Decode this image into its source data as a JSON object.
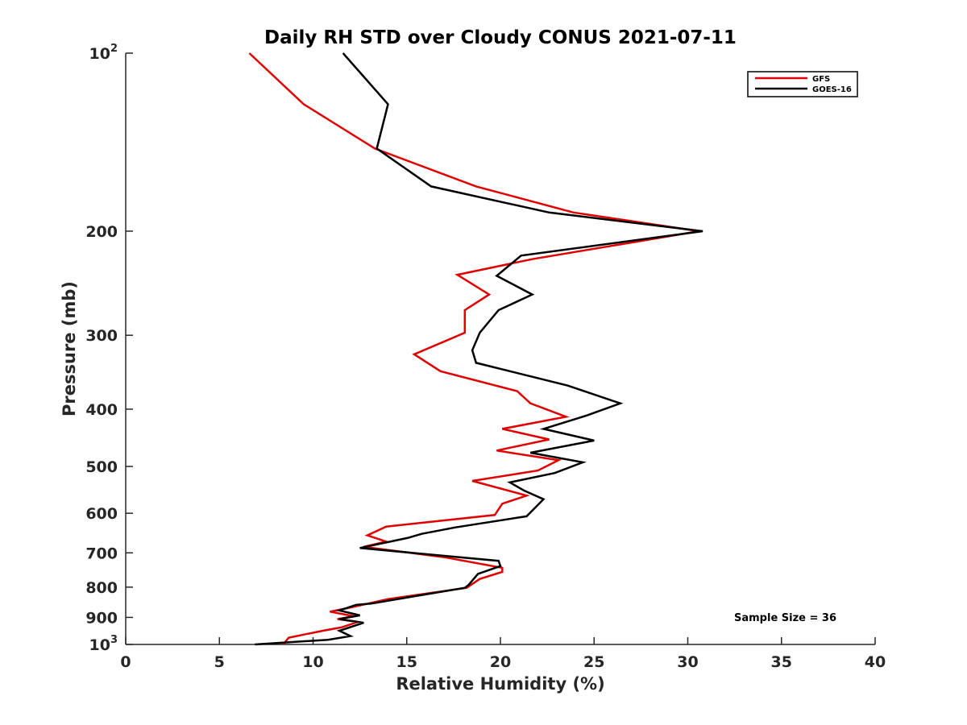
{
  "chart_data": {
    "type": "line",
    "title": "Daily RH STD over Cloudy CONUS 2021-07-11",
    "xlabel": "Relative Humidity (%)",
    "ylabel": "Pressure (mb)",
    "xlim": [
      0,
      40
    ],
    "ylim": [
      100,
      1000
    ],
    "y_scale": "log",
    "y_reversed": true,
    "grid": false,
    "legend_position": "top-right",
    "x_ticks": [
      {
        "value": 0,
        "label": "0"
      },
      {
        "value": 5,
        "label": "5"
      },
      {
        "value": 10,
        "label": "10"
      },
      {
        "value": 15,
        "label": "15"
      },
      {
        "value": 20,
        "label": "20"
      },
      {
        "value": 25,
        "label": "25"
      },
      {
        "value": 30,
        "label": "30"
      },
      {
        "value": 35,
        "label": "35"
      },
      {
        "value": 40,
        "label": "40"
      }
    ],
    "y_ticks": [
      {
        "value": 100,
        "base": "10",
        "exp": "2"
      },
      {
        "value": 200,
        "label": "200"
      },
      {
        "value": 300,
        "label": "300"
      },
      {
        "value": 400,
        "label": "400"
      },
      {
        "value": 500,
        "label": "500"
      },
      {
        "value": 600,
        "label": "600"
      },
      {
        "value": 700,
        "label": "700"
      },
      {
        "value": 800,
        "label": "800"
      },
      {
        "value": 900,
        "label": "900"
      },
      {
        "value": 1000,
        "base": "10",
        "exp": "3"
      }
    ],
    "annotations": [
      "Sample Size = 36"
    ],
    "series": [
      {
        "name": "GFS",
        "color": "#e00000",
        "points": [
          [
            6.6,
            100
          ],
          [
            9.5,
            122
          ],
          [
            13.3,
            145
          ],
          [
            18.7,
            168
          ],
          [
            23.9,
            186
          ],
          [
            30.6,
            200
          ],
          [
            21.7,
            223
          ],
          [
            17.7,
            237
          ],
          [
            19.4,
            256
          ],
          [
            18.1,
            272
          ],
          [
            18.1,
            297
          ],
          [
            15.4,
            323
          ],
          [
            16.8,
            345
          ],
          [
            20.9,
            373
          ],
          [
            21.6,
            391
          ],
          [
            23.5,
            412
          ],
          [
            20.1,
            432
          ],
          [
            22.6,
            450
          ],
          [
            19.8,
            470
          ],
          [
            23.1,
            488
          ],
          [
            22.0,
            508
          ],
          [
            18.5,
            529
          ],
          [
            21.4,
            560
          ],
          [
            20.1,
            578
          ],
          [
            19.7,
            604
          ],
          [
            13.9,
            632
          ],
          [
            12.9,
            654
          ],
          [
            13.9,
            670
          ],
          [
            12.7,
            684
          ],
          [
            17.0,
            712
          ],
          [
            20.1,
            742
          ],
          [
            20.1,
            754
          ],
          [
            18.9,
            775
          ],
          [
            18.2,
            802
          ],
          [
            14.0,
            838
          ],
          [
            12.0,
            866
          ],
          [
            10.9,
            880
          ],
          [
            12.2,
            896
          ],
          [
            11.3,
            906
          ],
          [
            12.4,
            916
          ],
          [
            11.5,
            936
          ],
          [
            10.6,
            947
          ],
          [
            8.7,
            974
          ],
          [
            8.4,
            1000
          ]
        ]
      },
      {
        "name": "GOES-16",
        "color": "#000000",
        "points": [
          [
            11.6,
            100
          ],
          [
            14.0,
            122
          ],
          [
            13.4,
            145
          ],
          [
            16.3,
            168
          ],
          [
            22.6,
            186
          ],
          [
            30.8,
            200
          ],
          [
            21.1,
            220
          ],
          [
            19.8,
            238
          ],
          [
            21.7,
            256
          ],
          [
            19.9,
            272
          ],
          [
            18.9,
            297
          ],
          [
            18.5,
            318
          ],
          [
            18.7,
            334
          ],
          [
            23.6,
            365
          ],
          [
            26.4,
            391
          ],
          [
            24.6,
            410
          ],
          [
            22.3,
            432
          ],
          [
            25.0,
            452
          ],
          [
            21.6,
            474
          ],
          [
            24.4,
            492
          ],
          [
            22.9,
            513
          ],
          [
            20.5,
            532
          ],
          [
            21.3,
            550
          ],
          [
            22.3,
            568
          ],
          [
            21.4,
            607
          ],
          [
            17.6,
            634
          ],
          [
            15.8,
            650
          ],
          [
            15.1,
            660
          ],
          [
            12.5,
            687
          ],
          [
            19.9,
            722
          ],
          [
            20.0,
            737
          ],
          [
            18.8,
            760
          ],
          [
            18.3,
            793
          ],
          [
            18.1,
            802
          ],
          [
            15.3,
            830
          ],
          [
            13.1,
            853
          ],
          [
            12.3,
            857
          ],
          [
            11.4,
            876
          ],
          [
            12.5,
            893
          ],
          [
            11.4,
            906
          ],
          [
            12.7,
            919
          ],
          [
            11.4,
            948
          ],
          [
            12.0,
            968
          ],
          [
            10.8,
            982
          ],
          [
            6.9,
            1000
          ]
        ]
      }
    ]
  }
}
